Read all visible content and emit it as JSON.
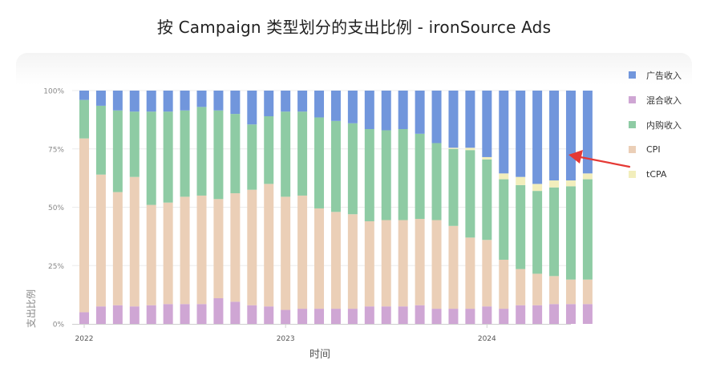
{
  "title": "按 Campaign 类型划分的支出比例 - ironSource Ads",
  "chart_data": {
    "type": "bar",
    "stacked": true,
    "normalized": true,
    "title": "按 Campaign 类型划分的支出比例 - ironSource Ads",
    "xlabel": "时间",
    "ylabel": "支出比例",
    "ylim": [
      0,
      100
    ],
    "yticks": [
      {
        "value": 0,
        "label": "0%"
      },
      {
        "value": 25,
        "label": "25%"
      },
      {
        "value": 50,
        "label": "50%"
      },
      {
        "value": 75,
        "label": "75%"
      },
      {
        "value": 100,
        "label": "100%"
      }
    ],
    "xtick_labels": [
      {
        "label": "2022",
        "index": 0
      },
      {
        "label": "2023",
        "index": 12
      },
      {
        "label": "2024",
        "index": 24
      }
    ],
    "categories": [
      "2022-01",
      "2022-02",
      "2022-03",
      "2022-04",
      "2022-05",
      "2022-06",
      "2022-07",
      "2022-08",
      "2022-09",
      "2022-10",
      "2022-11",
      "2022-12",
      "2023-01",
      "2023-02",
      "2023-03",
      "2023-04",
      "2023-05",
      "2023-06",
      "2023-07",
      "2023-08",
      "2023-09",
      "2023-10",
      "2023-11",
      "2023-12",
      "2024-01",
      "2024-02",
      "2024-03",
      "2024-04",
      "2024-05",
      "2024-06",
      "2024-07"
    ],
    "legend_position": "right",
    "series": [
      {
        "name": "混合收入",
        "color": "#cfa6d4",
        "values": [
          5,
          7.5,
          8,
          7.5,
          8,
          8.5,
          8.5,
          8.5,
          11,
          9.5,
          8,
          7.5,
          6,
          6.5,
          6.5,
          6.5,
          6.5,
          7.5,
          7.5,
          7.5,
          8,
          6.5,
          6.5,
          6.5,
          7.5,
          6.5,
          8,
          8,
          8.5,
          8.5,
          8.5
        ]
      },
      {
        "name": "CPI",
        "color": "#ebcfb7",
        "values": [
          74.5,
          56.5,
          48.5,
          55.5,
          43,
          43.5,
          46,
          46.5,
          42.5,
          46.5,
          49.5,
          52.5,
          48.5,
          48.5,
          43,
          41.5,
          40.5,
          36.5,
          37,
          37,
          37,
          38,
          35.5,
          30.5,
          28.5,
          21,
          15.5,
          13.5,
          12,
          10.5,
          10.5
        ]
      },
      {
        "name": "内购收入",
        "color": "#8ecba4",
        "values": [
          16.5,
          29.5,
          35,
          28,
          40,
          39,
          37,
          38,
          38,
          34,
          28,
          29,
          36.5,
          36,
          39,
          39,
          39,
          39.5,
          38.5,
          39,
          36.5,
          33,
          33,
          37.5,
          34.5,
          34.5,
          36,
          35.5,
          38,
          40,
          43
        ]
      },
      {
        "name": "tCPA",
        "color": "#f2eebc",
        "values": [
          0,
          0,
          0,
          0,
          0,
          0,
          0,
          0,
          0,
          0,
          0,
          0,
          0,
          0,
          0,
          0,
          0,
          0,
          0,
          0,
          0,
          0,
          0.5,
          1,
          1,
          2.5,
          3.5,
          3,
          3,
          2.5,
          2.5
        ]
      },
      {
        "name": "广告收入",
        "color": "#7196dc",
        "values": [
          4,
          6.5,
          8.5,
          9,
          9,
          9,
          8.5,
          7,
          8.5,
          10,
          14.5,
          11,
          9,
          9,
          11.5,
          13,
          14,
          16.5,
          17,
          16.5,
          18.5,
          22.5,
          24.5,
          24.5,
          28.5,
          35.5,
          37,
          40,
          38.5,
          38.5,
          35.5
        ]
      }
    ]
  },
  "legend": [
    {
      "name": "广告收入",
      "color": "#7196dc"
    },
    {
      "name": "混合收入",
      "color": "#cfa6d4"
    },
    {
      "name": "内购收入",
      "color": "#8ecba4"
    },
    {
      "name": "CPI",
      "color": "#ebcfb7"
    },
    {
      "name": "tCPA",
      "color": "#f2eebc"
    }
  ],
  "annotation": {
    "type": "arrow",
    "color": "#e53935",
    "points_to": "tCPA in last bar"
  }
}
